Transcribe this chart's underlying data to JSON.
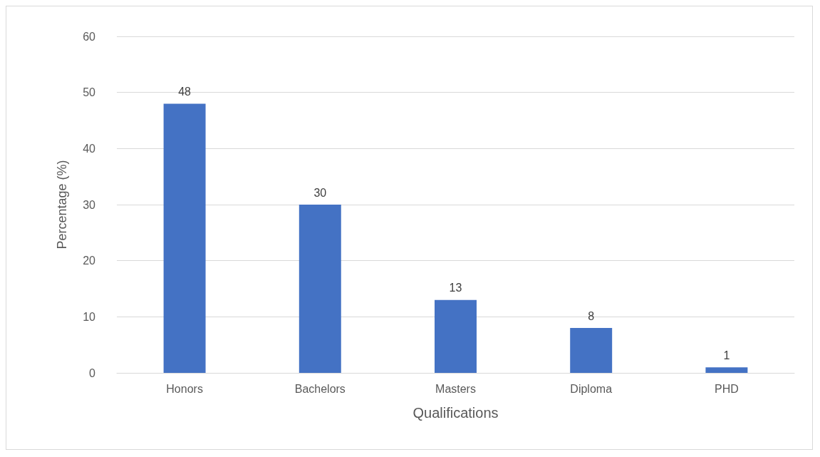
{
  "chart_data": {
    "type": "bar",
    "xlabel": "Qualifications",
    "ylabel": "Percentage (%)",
    "categories": [
      "Honors",
      "Bachelors",
      "Masters",
      "Diploma",
      "PHD"
    ],
    "values": [
      48,
      30,
      13,
      8,
      1
    ],
    "color": "#4472c4",
    "ylim": [
      0,
      60
    ],
    "yticks": [
      0,
      10,
      20,
      30,
      40,
      50,
      60
    ],
    "grid": "y",
    "data_labels": true
  }
}
